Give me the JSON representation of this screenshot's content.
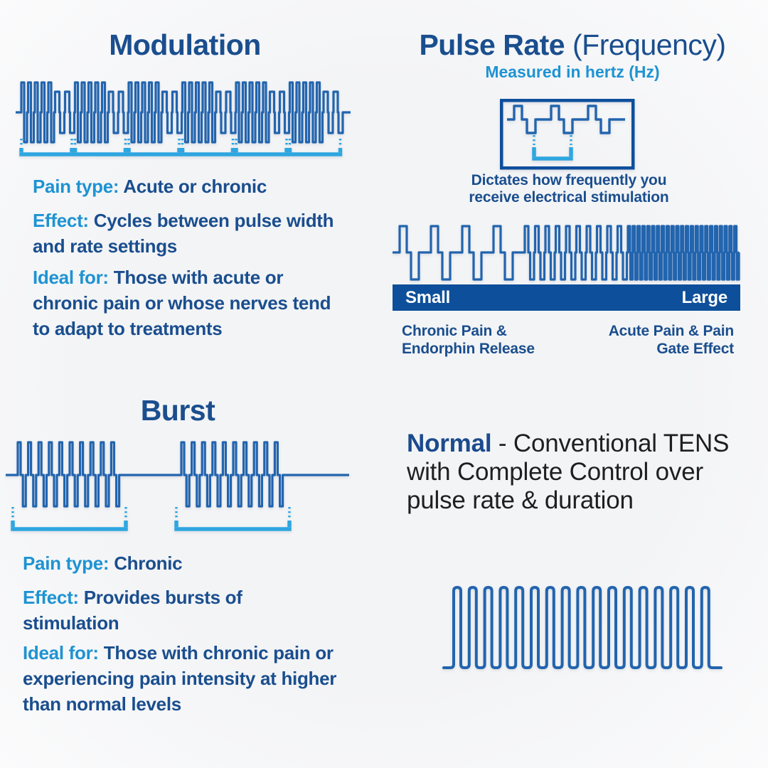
{
  "modulation": {
    "title": "Modulation",
    "pain_type_label": "Pain type:",
    "pain_type_value": "Acute or chronic",
    "effect_label": "Effect:",
    "effect_value": "Cycles between pulse width and rate settings",
    "ideal_label": "Ideal for:",
    "ideal_value": "Those with acute or chronic pain or whose nerves tend to adapt to treatments"
  },
  "pulse_rate": {
    "title": "Pulse Rate",
    "title_qualifier": "(Frequency)",
    "subtitle": "Measured in hertz (Hz)",
    "caption": "Dictates how frequently you receive electrical stimulation",
    "scale": {
      "left": "Small",
      "right": "Large"
    },
    "left_note": "Chronic Pain & Endorphin Release",
    "right_note": "Acute Pain & Pain Gate Effect"
  },
  "burst": {
    "title": "Burst",
    "pain_type_label": "Pain type:",
    "pain_type_value": "Chronic",
    "effect_label": "Effect:",
    "effect_value": "Provides bursts of stimulation",
    "ideal_label": "Ideal for:",
    "ideal_value": "Those with chronic pain or experiencing pain intensity at higher than normal levels"
  },
  "normal": {
    "title": "Normal",
    "description": " - Conventional TENS with Complete Control over pulse rate & duration"
  },
  "palette": {
    "navy_text": "#1a4e8e",
    "light_blue": "#1e93d2",
    "bar_blue": "#0d4f9a",
    "wave_blue": "#2264ae",
    "bracket_blue": "#2ea6e0",
    "box_border_blue": "#0e4f9c",
    "normal_text_black": "#1f1f1f",
    "background": "#f5f5f6"
  }
}
